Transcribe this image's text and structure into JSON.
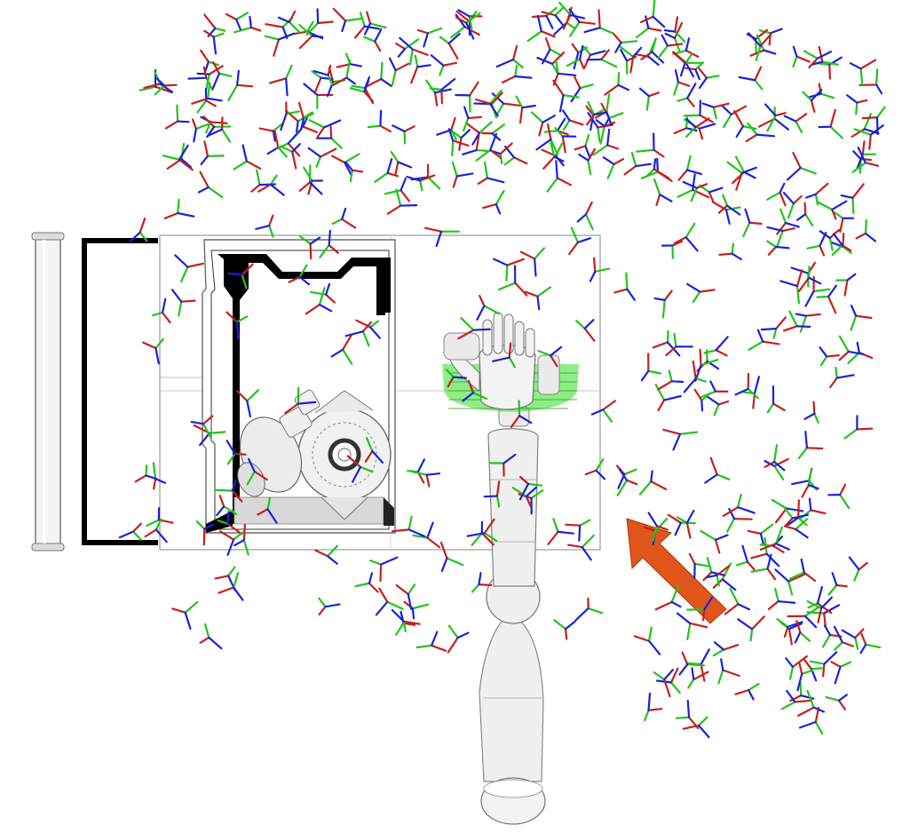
{
  "scene": {
    "background": "#ffffff",
    "colors": {
      "x_axis": "#c81e1e",
      "y_axis": "#22c41a",
      "z_axis": "#1a22d8",
      "arrow": "#e0561a",
      "robot": "#eeeeee",
      "robot_outline": "#8a8a8a",
      "highlight": "#33dd22",
      "frame_edge": "#000000"
    },
    "icons": [
      "robot-arm-icon",
      "pointer-arrow-icon",
      "coordinate-frame-icon"
    ],
    "grasp_frame_count": 420
  }
}
